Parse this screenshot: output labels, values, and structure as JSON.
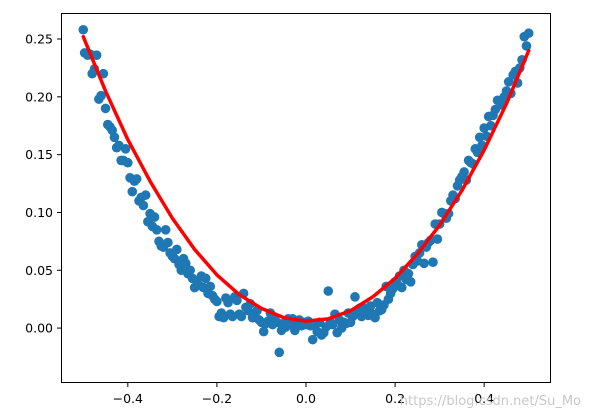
{
  "chart_data": {
    "type": "scatter",
    "xlim": [
      -0.55,
      0.55
    ],
    "ylim": [
      -0.0475,
      0.2725
    ],
    "x_ticks": [
      -0.4,
      -0.2,
      0.0,
      0.2,
      0.4
    ],
    "x_tick_labels": [
      "−0.4",
      "−0.2",
      "0.0",
      "0.2",
      "0.4"
    ],
    "y_ticks": [
      0.0,
      0.05,
      0.1,
      0.15,
      0.2,
      0.25
    ],
    "y_tick_labels": [
      "0.00",
      "0.05",
      "0.10",
      "0.15",
      "0.20",
      "0.25"
    ],
    "grid": false,
    "legend": "none",
    "series": [
      {
        "kind": "scatter",
        "color": "#1f77b4",
        "points": [
          [
            -0.5,
            0.258
          ],
          [
            -0.497,
            0.238
          ],
          [
            -0.49,
            0.236
          ],
          [
            -0.485,
            0.237
          ],
          [
            -0.48,
            0.22
          ],
          [
            -0.475,
            0.224
          ],
          [
            -0.47,
            0.236
          ],
          [
            -0.465,
            0.198
          ],
          [
            -0.46,
            0.201
          ],
          [
            -0.455,
            0.22
          ],
          [
            -0.45,
            0.19
          ],
          [
            -0.445,
            0.176
          ],
          [
            -0.44,
            0.174
          ],
          [
            -0.435,
            0.171
          ],
          [
            -0.43,
            0.165
          ],
          [
            -0.425,
            0.156
          ],
          [
            -0.42,
            0.158
          ],
          [
            -0.415,
            0.145
          ],
          [
            -0.41,
            0.145
          ],
          [
            -0.405,
            0.155
          ],
          [
            -0.4,
            0.143
          ],
          [
            -0.395,
            0.13
          ],
          [
            -0.39,
            0.118
          ],
          [
            -0.385,
            0.127
          ],
          [
            -0.38,
            0.129
          ],
          [
            -0.375,
            0.11
          ],
          [
            -0.37,
            0.113
          ],
          [
            -0.365,
            0.106
          ],
          [
            -0.36,
            0.115
          ],
          [
            -0.355,
            0.092
          ],
          [
            -0.35,
            0.099
          ],
          [
            -0.345,
            0.088
          ],
          [
            -0.34,
            0.096
          ],
          [
            -0.335,
            0.085
          ],
          [
            -0.33,
            0.075
          ],
          [
            -0.325,
            0.071
          ],
          [
            -0.32,
            0.07
          ],
          [
            -0.315,
            0.085
          ],
          [
            -0.31,
            0.074
          ],
          [
            -0.305,
            0.065
          ],
          [
            -0.3,
            0.062
          ],
          [
            -0.295,
            0.06
          ],
          [
            -0.29,
            0.068
          ],
          [
            -0.285,
            0.055
          ],
          [
            -0.28,
            0.05
          ],
          [
            -0.275,
            0.06
          ],
          [
            -0.27,
            0.056
          ],
          [
            -0.265,
            0.047
          ],
          [
            -0.26,
            0.05
          ],
          [
            -0.255,
            0.043
          ],
          [
            -0.25,
            0.035
          ],
          [
            -0.245,
            0.041
          ],
          [
            -0.24,
            0.037
          ],
          [
            -0.235,
            0.045
          ],
          [
            -0.23,
            0.035
          ],
          [
            -0.225,
            0.043
          ],
          [
            -0.22,
            0.03
          ],
          [
            -0.215,
            0.036
          ],
          [
            -0.21,
            0.028
          ],
          [
            -0.205,
            0.025
          ],
          [
            -0.2,
            0.023
          ],
          [
            -0.195,
            0.01
          ],
          [
            -0.19,
            0.013
          ],
          [
            -0.185,
            0.009
          ],
          [
            -0.18,
            0.026
          ],
          [
            -0.175,
            0.022
          ],
          [
            -0.17,
            0.012
          ],
          [
            -0.165,
            0.01
          ],
          [
            -0.16,
            0.027
          ],
          [
            -0.155,
            0.024
          ],
          [
            -0.15,
            0.012
          ],
          [
            -0.145,
            0.01
          ],
          [
            -0.14,
            0.03
          ],
          [
            -0.135,
            0.018
          ],
          [
            -0.13,
            0.015
          ],
          [
            -0.125,
            0.021
          ],
          [
            -0.12,
            0.009
          ],
          [
            -0.115,
            0.01
          ],
          [
            -0.11,
            0.015
          ],
          [
            -0.105,
            0.007
          ],
          [
            -0.1,
            0.005
          ],
          [
            -0.095,
            -0.003
          ],
          [
            -0.09,
            0.004
          ],
          [
            -0.085,
            0.006
          ],
          [
            -0.08,
            0.013
          ],
          [
            -0.075,
            0.003
          ],
          [
            -0.07,
            0.007
          ],
          [
            -0.065,
            0.005
          ],
          [
            -0.06,
            -0.021
          ],
          [
            -0.055,
            -0.002
          ],
          [
            -0.05,
            0.004
          ],
          [
            -0.045,
            0.001
          ],
          [
            -0.04,
            0.008
          ],
          [
            -0.035,
            0.003
          ],
          [
            -0.03,
            0.008
          ],
          [
            -0.025,
            -0.002
          ],
          [
            -0.02,
            0.002
          ],
          [
            -0.015,
            0.007
          ],
          [
            -0.01,
            0.002
          ],
          [
            -0.005,
            0.005
          ],
          [
            0.0,
            0.003
          ],
          [
            0.005,
            0.006
          ],
          [
            0.01,
            0.002
          ],
          [
            0.015,
            -0.01
          ],
          [
            0.02,
            0.002
          ],
          [
            0.025,
            -0.003
          ],
          [
            0.03,
            0.005
          ],
          [
            0.035,
            -0.006
          ],
          [
            0.04,
            -0.004
          ],
          [
            0.045,
            0.001
          ],
          [
            0.05,
            0.032
          ],
          [
            0.055,
            0.005
          ],
          [
            0.06,
            0.003
          ],
          [
            0.065,
            0.012
          ],
          [
            0.07,
            -0.004
          ],
          [
            0.075,
            0.007
          ],
          [
            0.08,
            0.0
          ],
          [
            0.085,
            0.005
          ],
          [
            0.09,
            0.004
          ],
          [
            0.095,
            0.013
          ],
          [
            0.1,
            0.005
          ],
          [
            0.105,
            0.01
          ],
          [
            0.11,
            0.027
          ],
          [
            0.115,
            0.014
          ],
          [
            0.12,
            0.017
          ],
          [
            0.125,
            0.01
          ],
          [
            0.13,
            0.015
          ],
          [
            0.135,
            0.017
          ],
          [
            0.14,
            0.011
          ],
          [
            0.145,
            0.019
          ],
          [
            0.15,
            0.012
          ],
          [
            0.155,
            0.009
          ],
          [
            0.16,
            0.022
          ],
          [
            0.165,
            0.015
          ],
          [
            0.17,
            0.016
          ],
          [
            0.175,
            0.02
          ],
          [
            0.18,
            0.036
          ],
          [
            0.185,
            0.025
          ],
          [
            0.19,
            0.03
          ],
          [
            0.195,
            0.034
          ],
          [
            0.2,
            0.04
          ],
          [
            0.205,
            0.038
          ],
          [
            0.21,
            0.045
          ],
          [
            0.215,
            0.035
          ],
          [
            0.22,
            0.05
          ],
          [
            0.225,
            0.042
          ],
          [
            0.23,
            0.047
          ],
          [
            0.235,
            0.04
          ],
          [
            0.24,
            0.055
          ],
          [
            0.245,
            0.062
          ],
          [
            0.25,
            0.058
          ],
          [
            0.255,
            0.065
          ],
          [
            0.26,
            0.072
          ],
          [
            0.265,
            0.056
          ],
          [
            0.27,
            0.07
          ],
          [
            0.275,
            0.074
          ],
          [
            0.28,
            0.076
          ],
          [
            0.285,
            0.057
          ],
          [
            0.29,
            0.09
          ],
          [
            0.295,
            0.077
          ],
          [
            0.3,
            0.09
          ],
          [
            0.305,
            0.1
          ],
          [
            0.31,
            0.099
          ],
          [
            0.315,
            0.095
          ],
          [
            0.32,
            0.099
          ],
          [
            0.325,
            0.11
          ],
          [
            0.33,
            0.115
          ],
          [
            0.335,
            0.112
          ],
          [
            0.34,
            0.123
          ],
          [
            0.345,
            0.128
          ],
          [
            0.35,
            0.131
          ],
          [
            0.355,
            0.135
          ],
          [
            0.36,
            0.128
          ],
          [
            0.365,
            0.145
          ],
          [
            0.37,
            0.143
          ],
          [
            0.375,
            0.142
          ],
          [
            0.38,
            0.155
          ],
          [
            0.385,
            0.152
          ],
          [
            0.39,
            0.165
          ],
          [
            0.395,
            0.158
          ],
          [
            0.4,
            0.173
          ],
          [
            0.405,
            0.166
          ],
          [
            0.41,
            0.183
          ],
          [
            0.415,
            0.175
          ],
          [
            0.42,
            0.184
          ],
          [
            0.425,
            0.189
          ],
          [
            0.43,
            0.197
          ],
          [
            0.435,
            0.196
          ],
          [
            0.44,
            0.193
          ],
          [
            0.445,
            0.2
          ],
          [
            0.45,
            0.205
          ],
          [
            0.455,
            0.213
          ],
          [
            0.46,
            0.203
          ],
          [
            0.465,
            0.219
          ],
          [
            0.47,
            0.222
          ],
          [
            0.475,
            0.212
          ],
          [
            0.48,
            0.225
          ],
          [
            0.485,
            0.232
          ],
          [
            0.49,
            0.252
          ],
          [
            0.495,
            0.244
          ],
          [
            0.5,
            0.255
          ]
        ]
      },
      {
        "kind": "line",
        "color": "#ff0000",
        "fit": "quadratic",
        "x": [
          -0.5,
          -0.45,
          -0.4,
          -0.35,
          -0.3,
          -0.25,
          -0.2,
          -0.15,
          -0.1,
          -0.05,
          0.0,
          0.05,
          0.1,
          0.15,
          0.2,
          0.25,
          0.3,
          0.35,
          0.4,
          0.45,
          0.5
        ],
        "y": [
          0.252,
          0.205,
          0.163,
          0.127,
          0.095,
          0.068,
          0.046,
          0.029,
          0.017,
          0.009,
          0.006,
          0.008,
          0.015,
          0.027,
          0.043,
          0.064,
          0.089,
          0.119,
          0.154,
          0.194,
          0.24
        ]
      }
    ]
  },
  "watermark": "https://blog.csdn.net/Su_Mo"
}
